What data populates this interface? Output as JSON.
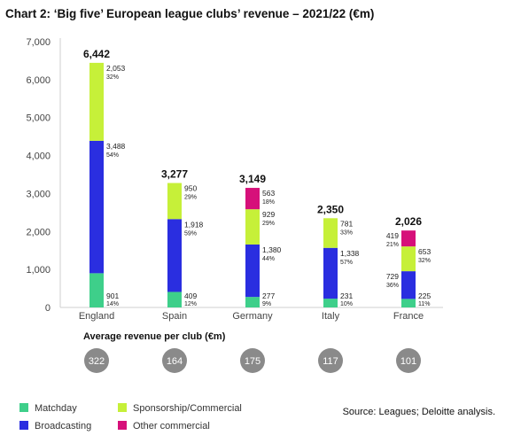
{
  "title": "Chart 2: ‘Big five’ European league clubs’ revenue – 2021/22 (€m)",
  "source": "Source: Leagues; Deloitte analysis.",
  "colors": {
    "Matchday": "#3ecf8a",
    "Broadcasting": "#2a2ee0",
    "Sponsorship/Commercial": "#c6f039",
    "Other commercial": "#d6107a",
    "circle": "#8a8a8a",
    "axis": "#cfcfcf"
  },
  "legend": [
    {
      "name": "Matchday",
      "color": "#3ecf8a"
    },
    {
      "name": "Sponsorship/Commercial",
      "color": "#c6f039"
    },
    {
      "name": "Broadcasting",
      "color": "#2a2ee0"
    },
    {
      "name": "Other commercial",
      "color": "#d6107a"
    }
  ],
  "chart_data": {
    "type": "bar",
    "stacked": true,
    "title": "Chart 2: ‘Big five’ European league clubs’ revenue – 2021/22 (€m)",
    "categories": [
      "England",
      "Spain",
      "Germany",
      "Italy",
      "France"
    ],
    "ylim": [
      0,
      7000
    ],
    "yticks": [
      "0",
      "1,000",
      "2,000",
      "3,000",
      "4,000",
      "5,000",
      "6,000",
      "7,000"
    ],
    "grid": false,
    "totals": [
      "6,442",
      "3,277",
      "3,149",
      "2,350",
      "2,026"
    ],
    "series": [
      {
        "name": "Matchday",
        "values": [
          901,
          409,
          277,
          231,
          225
        ],
        "labels": [
          "901",
          "409",
          "277",
          "231",
          "225"
        ],
        "percents": [
          "14%",
          "12%",
          "9%",
          "10%",
          "11%"
        ]
      },
      {
        "name": "Broadcasting",
        "values": [
          3488,
          1918,
          1380,
          1338,
          729
        ],
        "labels": [
          "3,488",
          "1,918",
          "1,380",
          "1,338",
          "729"
        ],
        "percents": [
          "54%",
          "59%",
          "44%",
          "57%",
          "36%"
        ]
      },
      {
        "name": "Sponsorship/Commercial",
        "values": [
          2053,
          950,
          929,
          781,
          653
        ],
        "labels": [
          "2,053",
          "950",
          "929",
          "781",
          "653"
        ],
        "percents": [
          "32%",
          "29%",
          "29%",
          "33%",
          "32%"
        ]
      },
      {
        "name": "Other commercial",
        "values": [
          0,
          0,
          563,
          0,
          419
        ],
        "labels": [
          "",
          "",
          "563",
          "",
          "419"
        ],
        "percents": [
          "",
          "",
          "18%",
          "",
          "21%"
        ]
      }
    ],
    "average_label": "Average revenue per club (€m)",
    "average_revenue": [
      "322",
      "164",
      "175",
      "117",
      "101"
    ],
    "legend_position": "bottom"
  }
}
